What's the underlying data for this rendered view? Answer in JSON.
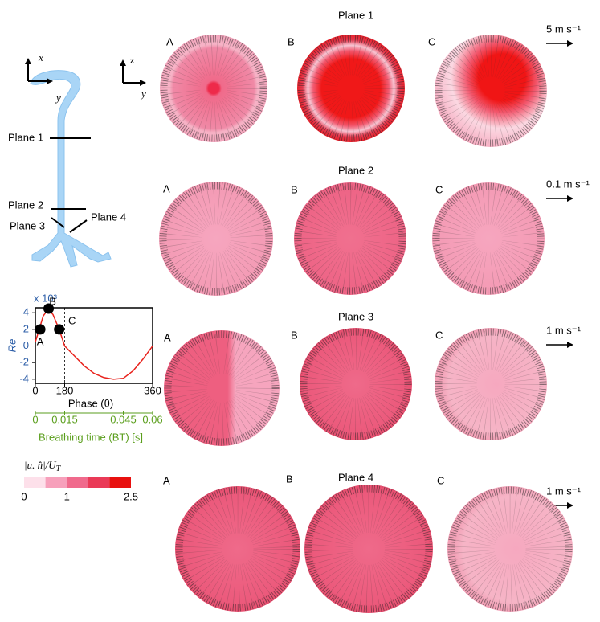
{
  "airway": {
    "axis_x": "x",
    "axis_y": "y",
    "plane_labels": [
      "Plane 1",
      "Plane 2",
      "Plane 3",
      "Plane 4"
    ]
  },
  "panel_axes": {
    "vertical": "z",
    "horizontal": "y"
  },
  "chart_data": {
    "type": "line",
    "ylabel": "Re",
    "y_exponent": "x 10³",
    "xlabel": "Breathing time (BT) [s]",
    "x2label": "Phase (θ)",
    "x": [
      0,
      0.002,
      0.004,
      0.0065,
      0.009,
      0.0122,
      0.015,
      0.02,
      0.025,
      0.03,
      0.035,
      0.04,
      0.045,
      0.05,
      0.055,
      0.06
    ],
    "values": [
      0.5,
      2,
      3.6,
      4.4,
      3.8,
      2,
      0,
      -1.2,
      -2.4,
      -3.3,
      -3.8,
      -4,
      -3.9,
      -3,
      -1.6,
      0
    ],
    "color": "#e8221c",
    "xlim": [
      0,
      0.06
    ],
    "xticks": [
      0,
      0.015,
      0.045,
      0.06
    ],
    "x2ticks": [
      {
        "value": 0,
        "label": "0"
      },
      {
        "value": 0.015,
        "label": "180"
      },
      {
        "value": 0.06,
        "label": "360"
      }
    ],
    "ylim": [
      -4.5,
      4.6
    ],
    "yticks": [
      4,
      2,
      0,
      -2,
      -4
    ],
    "points": [
      {
        "label": "A",
        "x": 0.0025,
        "y": 2
      },
      {
        "label": "B",
        "x": 0.0068,
        "y": 4.5
      },
      {
        "label": "C",
        "x": 0.0122,
        "y": 2
      }
    ]
  },
  "colorbar": {
    "label": "|u. n̂|/U",
    "label_sub": "T",
    "range": [
      0,
      2.5
    ],
    "ticks": [
      0,
      1,
      2.5
    ],
    "colors": [
      "#fde0ea",
      "#f7a0bb",
      "#f06a8c",
      "#ea3a57",
      "#e8100f"
    ]
  },
  "planes": [
    {
      "title": "Plane 1",
      "scale": "5 m s⁻¹",
      "panels": [
        "A",
        "B",
        "C"
      ]
    },
    {
      "title": "Plane 2",
      "scale": "0.1 m s⁻¹",
      "panels": [
        "A",
        "B",
        "C"
      ]
    },
    {
      "title": "Plane 3",
      "scale": "1 m s⁻¹",
      "panels": [
        "A",
        "B",
        "C"
      ]
    },
    {
      "title": "Plane 4",
      "scale": "1 m s⁻¹",
      "panels": [
        "A",
        "B",
        "C"
      ]
    }
  ]
}
